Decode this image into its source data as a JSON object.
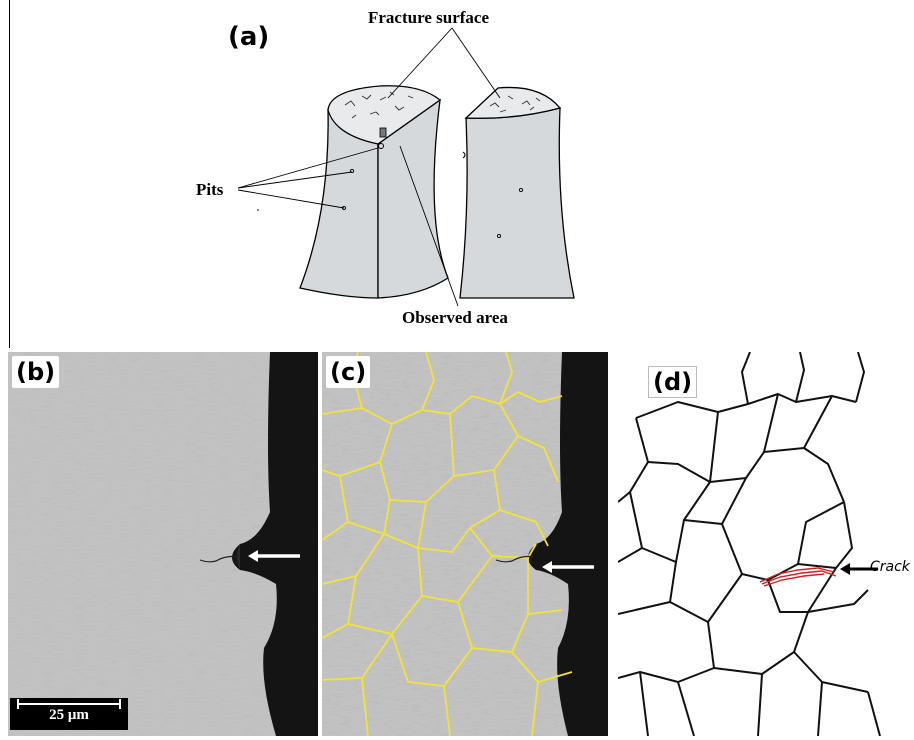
{
  "panels": {
    "a": {
      "letter": "(a)",
      "labels": {
        "fracture_surface": "Fracture surface",
        "pits": "Pits",
        "observed_area": "Observed area"
      }
    },
    "b": {
      "letter": "(b)",
      "scale_bar": "25 μm"
    },
    "c": {
      "letter": "(c)"
    },
    "d": {
      "letter": "(d)",
      "crack_label": "Crack"
    }
  },
  "colors": {
    "specimen_fill": "#d6d9db",
    "grain_boundary_overlay": "#f2e33a",
    "crack": "#d21f1f",
    "micrograph_background": "#111111"
  }
}
